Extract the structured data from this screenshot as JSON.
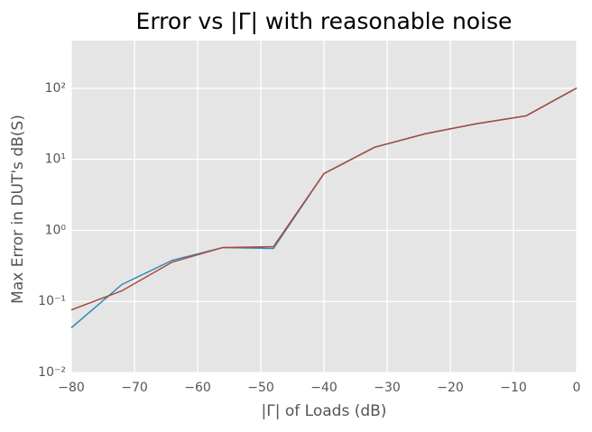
{
  "chart_data": {
    "type": "line",
    "title": "Error vs |Γ| with reasonable noise",
    "x_label": "|Γ| of Loads (dB)",
    "y_label": "Max Error in DUT's dB(S)",
    "x": [
      -80,
      -72,
      -64,
      -56,
      -48,
      -40,
      -32,
      -24,
      -16,
      -8,
      0
    ],
    "series": [
      {
        "color": "#348abd",
        "values": [
          0.0425,
          0.173,
          0.38,
          0.574,
          0.557,
          6.3,
          14.8,
          22.9,
          31.6,
          41,
          101
        ]
      },
      {
        "color": "#a9493b",
        "values": [
          0.076,
          0.141,
          0.359,
          0.574,
          0.59,
          6.3,
          14.8,
          22.9,
          31.6,
          41,
          101
        ]
      }
    ],
    "xlim": [
      -80,
      0
    ],
    "ylim": [
      0.01,
      470
    ],
    "yscale": "log",
    "xticks": [
      {
        "value": -80,
        "label": "−80"
      },
      {
        "value": -70,
        "label": "−70"
      },
      {
        "value": -60,
        "label": "−60"
      },
      {
        "value": -50,
        "label": "−50"
      },
      {
        "value": -40,
        "label": "−40"
      },
      {
        "value": -30,
        "label": "−30"
      },
      {
        "value": -20,
        "label": "−20"
      },
      {
        "value": -10,
        "label": "−10"
      },
      0
    ],
    "yticks": [
      {
        "value": 0.01,
        "label": "10⁻²"
      },
      {
        "value": 0.1,
        "label": "10⁻¹"
      },
      {
        "value": 1,
        "label": "10⁰"
      },
      {
        "value": 10,
        "label": "10¹"
      },
      {
        "value": 100,
        "label": "10²"
      }
    ],
    "grid": true
  }
}
